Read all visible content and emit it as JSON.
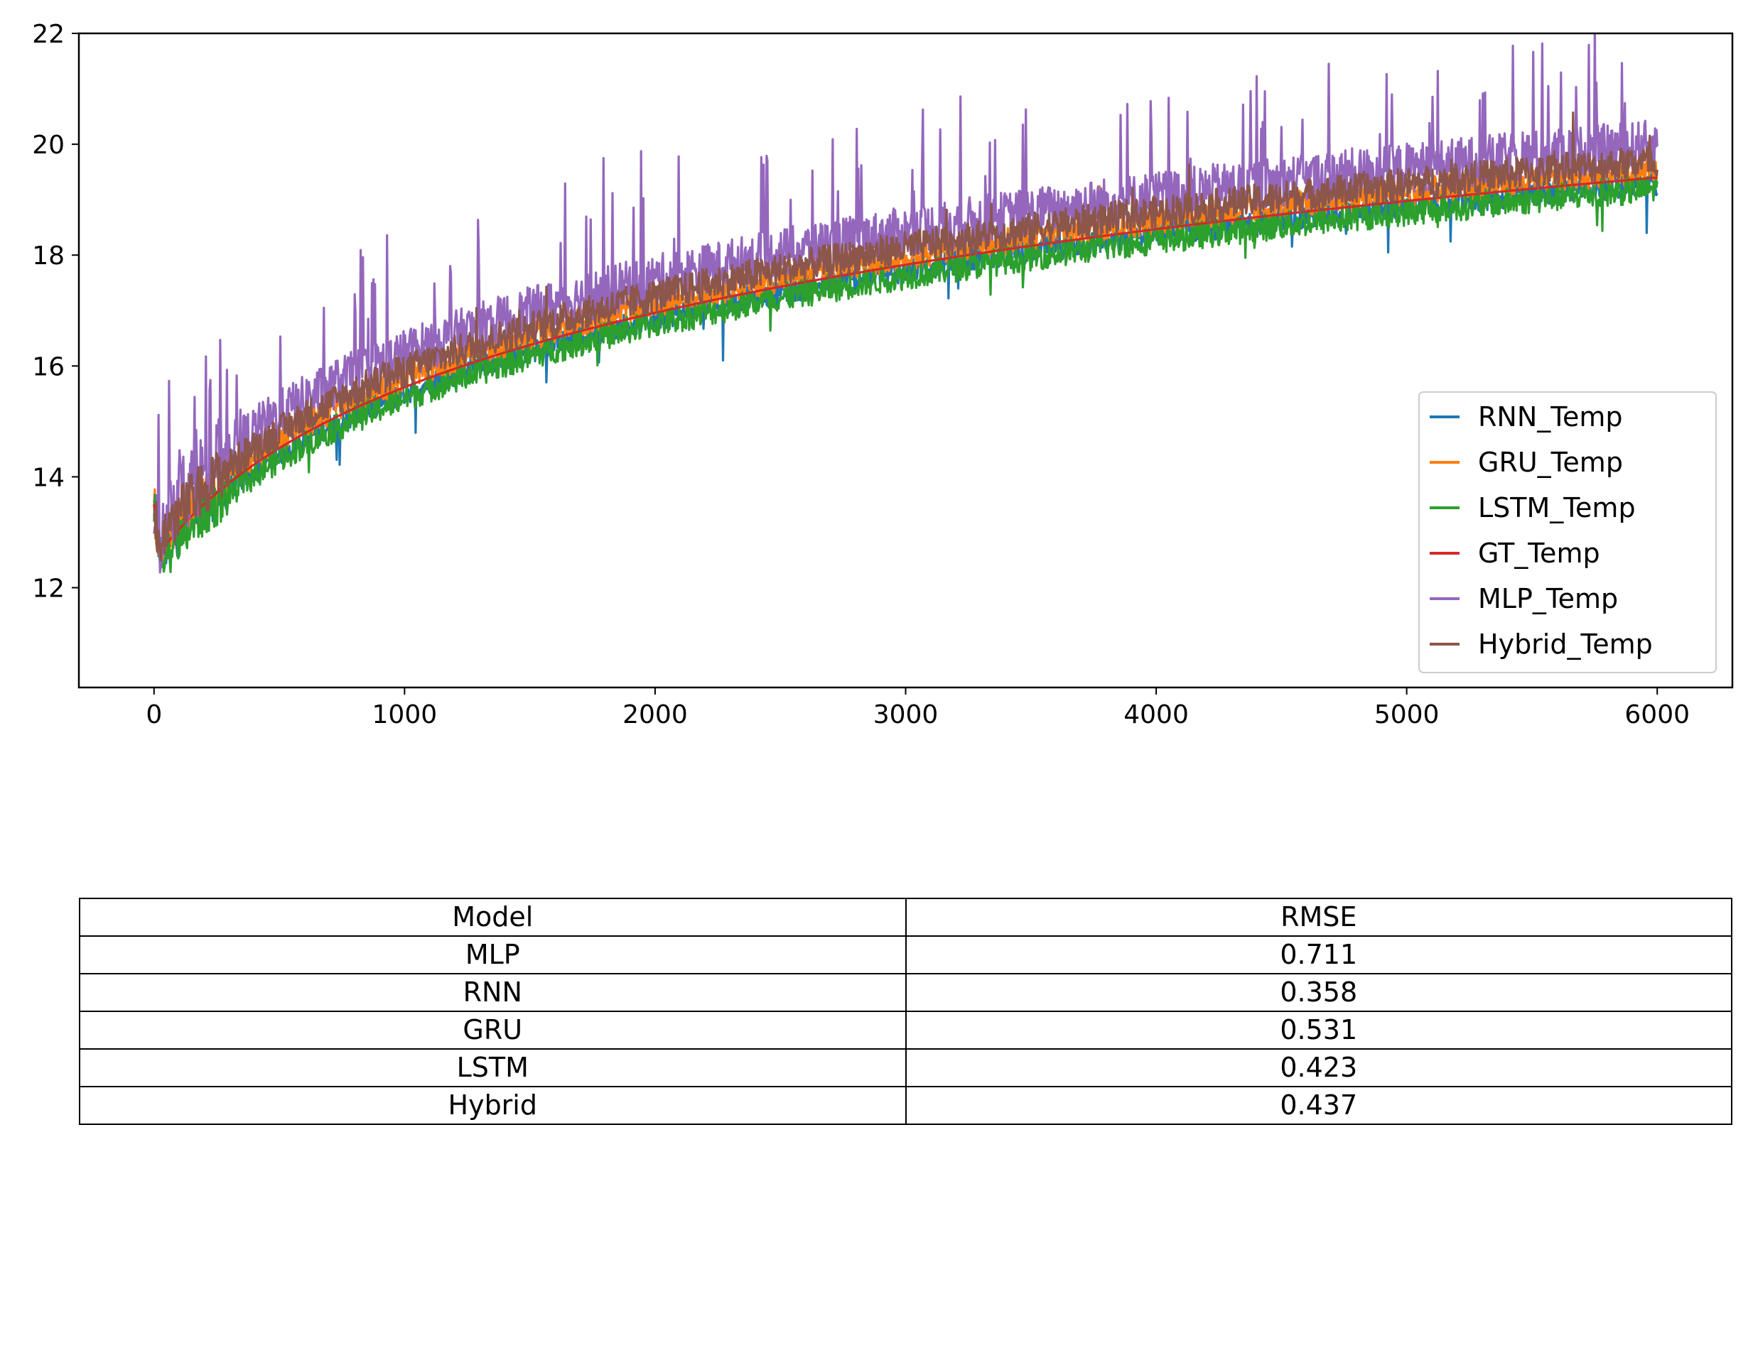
{
  "chart_data": {
    "type": "line",
    "xlim": [
      -300,
      6300
    ],
    "ylim": [
      10.2,
      22.0
    ],
    "x_ticks": [
      0,
      1000,
      2000,
      3000,
      4000,
      5000,
      6000
    ],
    "x_tick_labels": [
      "0",
      "1000",
      "2000",
      "3000",
      "4000",
      "5000",
      "6000"
    ],
    "y_ticks": [
      12,
      14,
      16,
      18,
      20,
      22
    ],
    "y_tick_labels": [
      "12",
      "14",
      "16",
      "18",
      "20",
      "22"
    ],
    "grid": false,
    "legend_position": "lower-right",
    "n_points": 6000,
    "gt_initial": 13.5,
    "gt_shape": "starts near 13.5 for the first ~20 samples, drops to about 12.5, then rises smoothly (log-like) to about 19.4 at x=6000",
    "series": [
      {
        "name": "RNN_Temp",
        "color": "#1f77b4",
        "offset": -0.1,
        "noise": 0.22,
        "spike_rate": 0.006,
        "spike_amp": -0.6
      },
      {
        "name": "GRU_Temp",
        "color": "#ff7f0e",
        "offset": 0.15,
        "noise": 0.25,
        "spike_rate": 0.006,
        "spike_amp": 0.6
      },
      {
        "name": "LSTM_Temp",
        "color": "#2ca02c",
        "offset": -0.2,
        "noise": 0.25,
        "spike_rate": 0.004,
        "spike_amp": -0.4
      },
      {
        "name": "GT_Temp",
        "color": "#d62728",
        "offset": 0.0,
        "noise": 0.0,
        "spike_rate": 0.0,
        "spike_amp": 0.0
      },
      {
        "name": "MLP_Temp",
        "color": "#9467bd",
        "offset": 0.6,
        "noise": 0.45,
        "spike_rate": 0.05,
        "spike_amp": 1.4
      },
      {
        "name": "Hybrid_Temp",
        "color": "#8c564b",
        "offset": 0.3,
        "noise": 0.3,
        "spike_rate": 0.008,
        "spike_amp": 0.5
      }
    ],
    "draw_order": [
      "RNN_Temp",
      "GRU_Temp",
      "LSTM_Temp",
      "GT_Temp",
      "MLP_Temp",
      "Hybrid_Temp"
    ]
  },
  "table": {
    "header": [
      "Model",
      "RMSE"
    ],
    "rows": [
      [
        "MLP",
        "0.711"
      ],
      [
        "RNN",
        "0.358"
      ],
      [
        "GRU",
        "0.531"
      ],
      [
        "LSTM",
        "0.423"
      ],
      [
        "Hybrid",
        "0.437"
      ]
    ]
  }
}
